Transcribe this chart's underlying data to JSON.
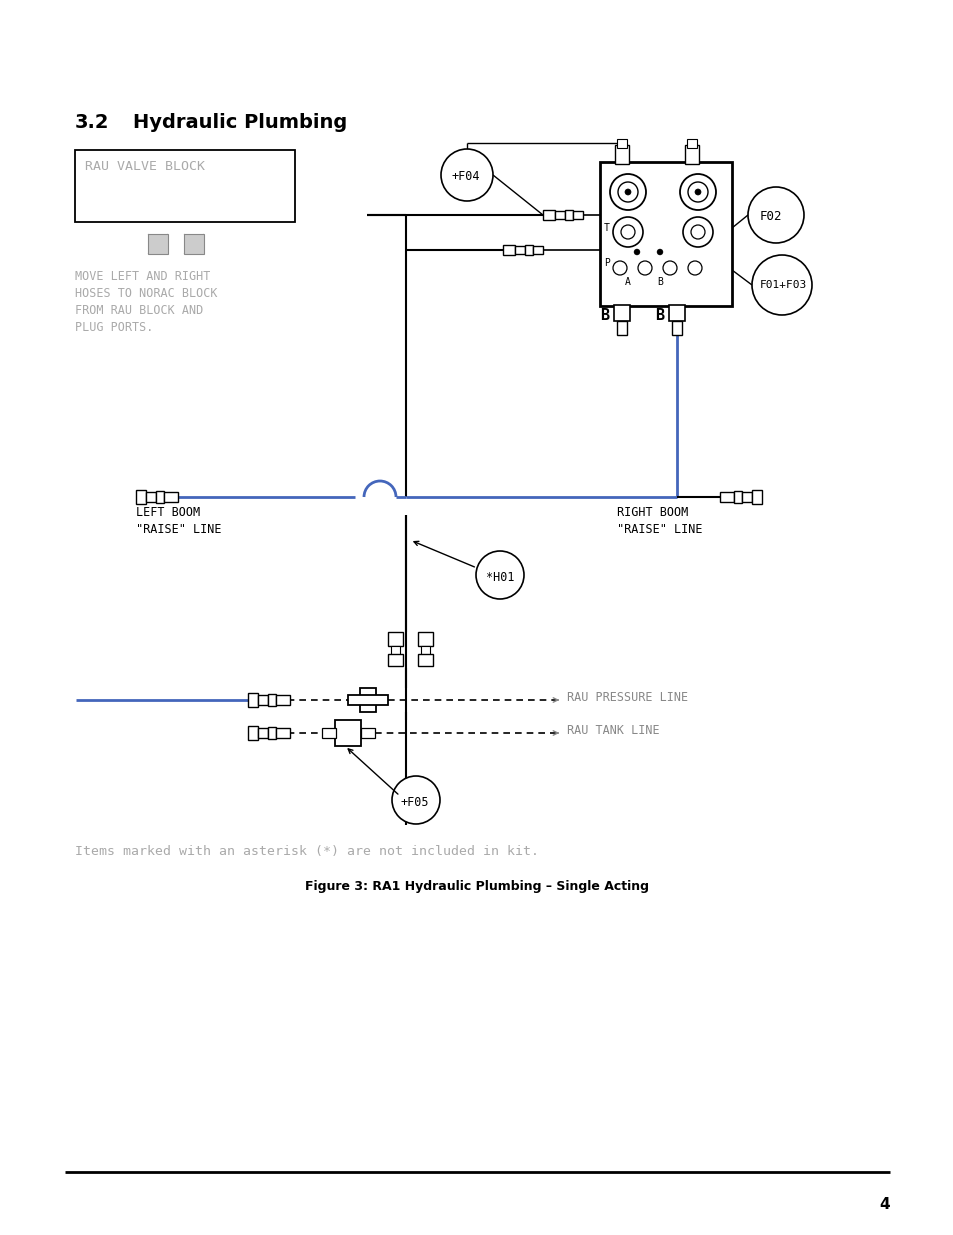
{
  "page_title_num": "3.2",
  "page_title_text": "Hydraulic Plumbing",
  "figure_caption": "Figure 3: RA1 Hydraulic Plumbing – Single Acting",
  "footnote": "Items marked with an asterisk (*) are not included in kit.",
  "page_number": "4",
  "bg": "#ffffff",
  "blue": "#4466bb",
  "gray_text": "#aaaaaa",
  "mid_gray": "#999999",
  "fill_gray": "#bbbbbb",
  "rau_block_text": "RAU VALVE BLOCK",
  "instr_lines": [
    "MOVE LEFT AND RIGHT",
    "HOSES TO NORAC BLOCK",
    "FROM RAU BLOCK AND",
    "PLUG PORTS."
  ],
  "left_boom_lines": [
    "LEFT BOOM",
    "\"RAISE\" LINE"
  ],
  "right_boom_lines": [
    "RIGHT BOOM",
    "\"RAISE\" LINE"
  ],
  "pressure_label": "RAU PRESSURE LINE",
  "tank_label": "RAU TANK LINE"
}
